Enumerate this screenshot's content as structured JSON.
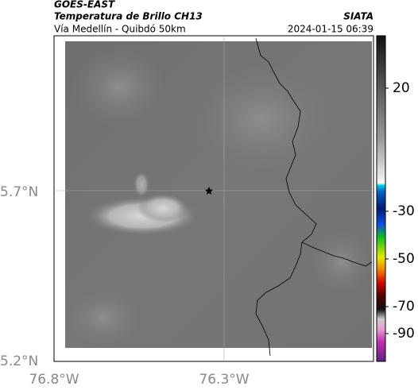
{
  "header": {
    "title": "GOES-EAST",
    "subtitle": "Temperatura de Brillo CH13",
    "region": "Vía Medellín - Quibdó 50km",
    "source": "SIATA",
    "timestamp": "2024-01-15 06:39"
  },
  "map": {
    "lat_labels": [
      "5.7°N",
      "5.2°N"
    ],
    "lon_labels": [
      "76.8°W",
      "76.3°W"
    ]
  },
  "colorbar": {
    "ticks": [
      20,
      -30,
      -50,
      -70,
      -90
    ]
  }
}
